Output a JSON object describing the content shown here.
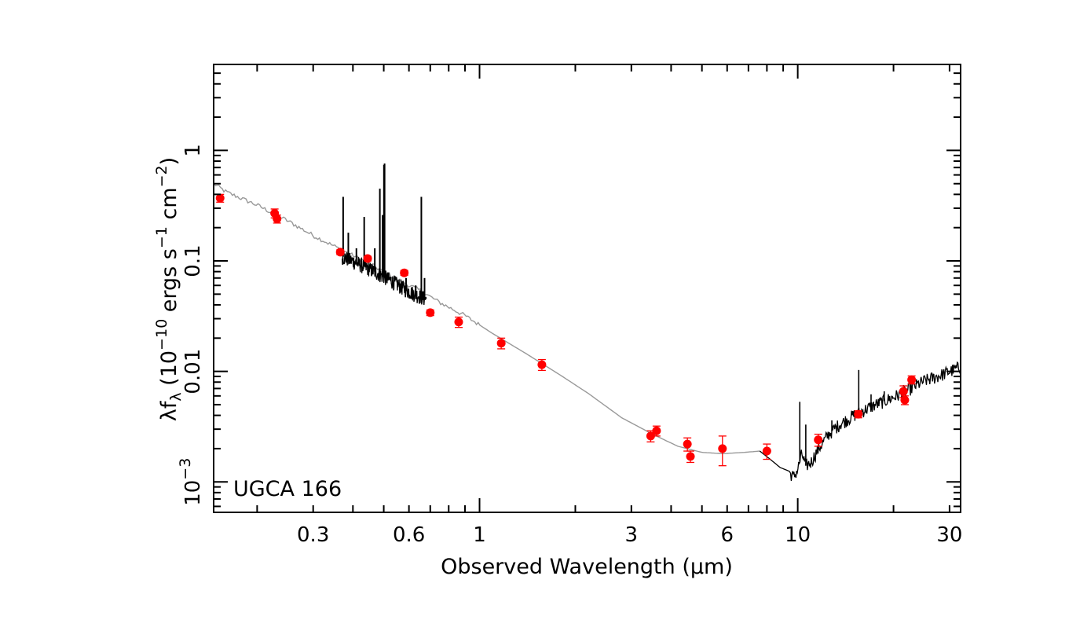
{
  "chart_data": {
    "type": "scatter",
    "xlabel": "Observed Wavelength (μm)",
    "ylabel_parts": [
      "λf",
      "λ",
      " (10",
      "−10",
      " ergs s",
      "−1",
      " cm",
      "−2",
      ")"
    ],
    "annotation": "UGCA 166",
    "x_scale": "log",
    "y_scale": "log",
    "xlim": [
      0.146,
      32.5
    ],
    "ylim": [
      0.00053,
      6.0
    ],
    "x_ticks": [
      {
        "value": 0.3,
        "label": "0.3"
      },
      {
        "value": 0.6,
        "label": "0.6"
      },
      {
        "value": 1,
        "label": "1"
      },
      {
        "value": 3,
        "label": "3"
      },
      {
        "value": 6,
        "label": "6"
      },
      {
        "value": 10,
        "label": "10"
      },
      {
        "value": 30,
        "label": "30"
      }
    ],
    "y_ticks": [
      {
        "value": 0.001,
        "base": "10",
        "exp": "−3"
      },
      {
        "value": 0.01,
        "label": "0.01"
      },
      {
        "value": 0.1,
        "label": "0.1"
      },
      {
        "value": 1,
        "label": "1"
      }
    ],
    "colors": {
      "photometry": "#ff0000",
      "model": "#999999",
      "spectrum": "#000000",
      "axes": "#000000"
    },
    "photometry": [
      {
        "x": 0.153,
        "y": 0.37,
        "err": 0.03
      },
      {
        "x": 0.227,
        "y": 0.27,
        "err": 0.025
      },
      {
        "x": 0.231,
        "y": 0.24,
        "err": 0.02
      },
      {
        "x": 0.365,
        "y": 0.12,
        "err": 0.006
      },
      {
        "x": 0.445,
        "y": 0.105,
        "err": 0.005
      },
      {
        "x": 0.58,
        "y": 0.078,
        "err": 0.004
      },
      {
        "x": 0.7,
        "y": 0.034,
        "err": 0.002
      },
      {
        "x": 0.86,
        "y": 0.028,
        "err": 0.003
      },
      {
        "x": 1.17,
        "y": 0.018,
        "err": 0.002
      },
      {
        "x": 1.57,
        "y": 0.0115,
        "err": 0.0013
      },
      {
        "x": 3.45,
        "y": 0.0026,
        "err": 0.0003
      },
      {
        "x": 3.6,
        "y": 0.0029,
        "err": 0.0003
      },
      {
        "x": 4.5,
        "y": 0.0022,
        "err": 0.0003
      },
      {
        "x": 4.6,
        "y": 0.0017,
        "err": 0.0002
      },
      {
        "x": 5.8,
        "y": 0.002,
        "err": 0.0006
      },
      {
        "x": 8.0,
        "y": 0.0019,
        "err": 0.0003
      },
      {
        "x": 11.6,
        "y": 0.0024,
        "err": 0.0003
      },
      {
        "x": 15.5,
        "y": 0.0041,
        "err": 0.0003
      },
      {
        "x": 21.5,
        "y": 0.0066,
        "err": 0.0008
      },
      {
        "x": 21.7,
        "y": 0.0055,
        "err": 0.0005
      },
      {
        "x": 22.8,
        "y": 0.0084,
        "err": 0.0007
      }
    ],
    "model_sed": [
      [
        0.146,
        0.5
      ],
      [
        0.16,
        0.42
      ],
      [
        0.2,
        0.32
      ],
      [
        0.25,
        0.23
      ],
      [
        0.3,
        0.17
      ],
      [
        0.37,
        0.125
      ],
      [
        0.45,
        0.095
      ],
      [
        0.55,
        0.068
      ],
      [
        0.65,
        0.054
      ],
      [
        0.75,
        0.042
      ],
      [
        0.9,
        0.032
      ],
      [
        1.1,
        0.022
      ],
      [
        1.4,
        0.0145
      ],
      [
        1.8,
        0.0092
      ],
      [
        2.2,
        0.0063
      ],
      [
        2.8,
        0.0038
      ],
      [
        3.5,
        0.0027
      ],
      [
        4.2,
        0.0021
      ],
      [
        5.0,
        0.00185
      ],
      [
        5.8,
        0.0018
      ],
      [
        6.8,
        0.00185
      ],
      [
        7.6,
        0.0019
      ]
    ],
    "optical_spectrum": {
      "x_range": [
        0.37,
        0.68
      ],
      "continuum": [
        [
          0.37,
          0.11
        ],
        [
          0.45,
          0.085
        ],
        [
          0.52,
          0.068
        ],
        [
          0.6,
          0.053
        ],
        [
          0.68,
          0.045
        ]
      ],
      "emission_lines": [
        {
          "x": 0.3727,
          "peak": 0.38
        },
        {
          "x": 0.3869,
          "peak": 0.18
        },
        {
          "x": 0.4102,
          "peak": 0.13
        },
        {
          "x": 0.434,
          "peak": 0.25
        },
        {
          "x": 0.4686,
          "peak": 0.13
        },
        {
          "x": 0.4861,
          "peak": 0.45
        },
        {
          "x": 0.4959,
          "peak": 0.26
        },
        {
          "x": 0.5007,
          "peak": 0.74
        },
        {
          "x": 0.503,
          "peak": 0.76
        },
        {
          "x": 0.5876,
          "peak": 0.07
        },
        {
          "x": 0.63,
          "peak": 0.06
        },
        {
          "x": 0.6563,
          "peak": 0.38
        },
        {
          "x": 0.6717,
          "peak": 0.07
        }
      ]
    },
    "ir_spectrum": {
      "x_range": [
        7.6,
        32.5
      ],
      "points": [
        [
          7.6,
          0.0019
        ],
        [
          8.2,
          0.0016
        ],
        [
          8.8,
          0.00135
        ],
        [
          9.4,
          0.00125
        ],
        [
          9.7,
          0.0011
        ],
        [
          10.0,
          0.0013
        ],
        [
          10.3,
          0.0018
        ],
        [
          10.6,
          0.0014
        ],
        [
          11.0,
          0.0015
        ],
        [
          11.5,
          0.0019
        ],
        [
          12.5,
          0.0027
        ],
        [
          13.5,
          0.0033
        ],
        [
          15.0,
          0.004
        ],
        [
          17.0,
          0.0048
        ],
        [
          19.0,
          0.0055
        ],
        [
          21.0,
          0.0062
        ],
        [
          23.0,
          0.0072
        ],
        [
          25.0,
          0.0082
        ],
        [
          28.0,
          0.0092
        ],
        [
          32.5,
          0.011
        ]
      ],
      "spikes": [
        {
          "x": 10.15,
          "peak": 0.0053
        },
        {
          "x": 10.6,
          "peak": 0.0033
        },
        {
          "x": 12.8,
          "peak": 0.0036
        },
        {
          "x": 15.55,
          "peak": 0.0103
        },
        {
          "x": 17.0,
          "peak": 0.0062
        },
        {
          "x": 18.7,
          "peak": 0.0066
        },
        {
          "x": 21.5,
          "peak": 0.0075
        }
      ]
    }
  }
}
